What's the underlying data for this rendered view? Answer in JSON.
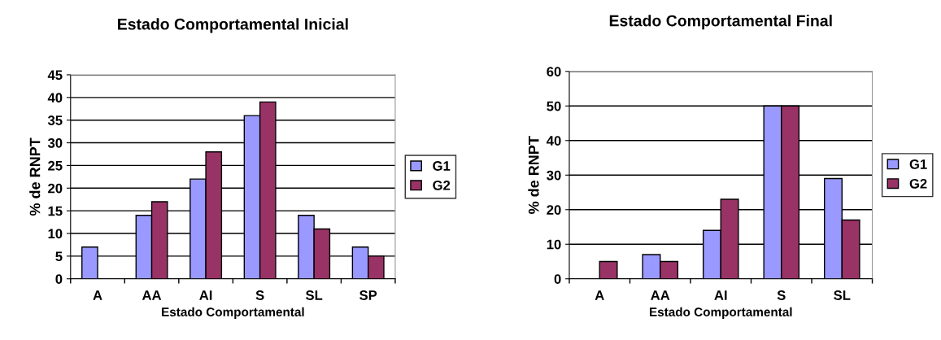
{
  "chart_data": [
    {
      "type": "bar",
      "title": "Estado Comportamental Inicial",
      "xlabel": "Estado Comportamental",
      "ylabel": "% de RNPT",
      "categories": [
        "A",
        "AA",
        "AI",
        "S",
        "SL",
        "SP"
      ],
      "series": [
        {
          "name": "G1",
          "color": "#9999ff",
          "values": [
            7,
            14,
            22,
            36,
            14,
            7
          ]
        },
        {
          "name": "G2",
          "color": "#993366",
          "values": [
            null,
            17,
            28,
            39,
            11,
            5
          ]
        }
      ],
      "ylim": [
        0,
        45
      ],
      "yticks": [
        0,
        5,
        10,
        15,
        20,
        25,
        30,
        35,
        40,
        45
      ],
      "grid": "y",
      "legend": "right"
    },
    {
      "type": "bar",
      "title": "Estado Comportamental Final",
      "xlabel": "Estado Comportamental",
      "ylabel": "% de RNPT",
      "categories": [
        "A",
        "AA",
        "AI",
        "S",
        "SL"
      ],
      "series": [
        {
          "name": "G1",
          "color": "#9999ff",
          "values": [
            null,
            7,
            14,
            50,
            29
          ]
        },
        {
          "name": "G2",
          "color": "#993366",
          "values": [
            5,
            5,
            23,
            50,
            17
          ]
        }
      ],
      "ylim": [
        0,
        60
      ],
      "yticks": [
        0,
        10,
        20,
        30,
        40,
        50,
        60
      ],
      "grid": "y",
      "legend": "right"
    }
  ]
}
